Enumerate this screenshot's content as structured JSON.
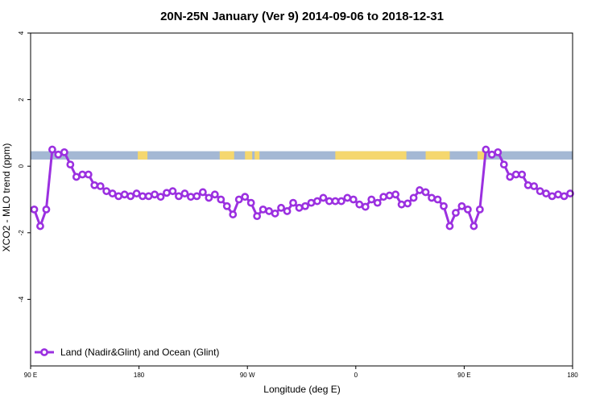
{
  "chart_data": {
    "type": "line",
    "title": "20N-25N January (Ver 9)   2014-09-06 to 2018-12-31",
    "xlabel": "Longitude (deg E)",
    "ylabel": "XCO2 - MLO trend (ppm)",
    "xlim": [
      90,
      540
    ],
    "ylim": [
      -6,
      4
    ],
    "x_ticks": [
      {
        "value": 90,
        "label": "90 E"
      },
      {
        "value": 180,
        "label": "180"
      },
      {
        "value": 270,
        "label": "90 W"
      },
      {
        "value": 360,
        "label": "0"
      },
      {
        "value": 450,
        "label": "90 E"
      },
      {
        "value": 540,
        "label": "180"
      }
    ],
    "y_ticks": [
      {
        "value": 4,
        "label": "4"
      },
      {
        "value": 2,
        "label": "2"
      },
      {
        "value": 0,
        "label": "0"
      },
      {
        "value": -2,
        "label": "-2"
      },
      {
        "value": -4,
        "label": "-4"
      }
    ],
    "grid": false,
    "legend_position": "bottom-left",
    "series": [
      {
        "name": "Land (Nadir&Glint) and Ocean (Glint)",
        "color": "#9b30e0",
        "x": [
          93,
          98,
          103,
          108,
          113,
          118,
          123,
          128,
          133,
          138,
          143,
          148,
          153,
          158,
          163,
          168,
          173,
          178,
          183,
          188,
          193,
          198,
          203,
          208,
          213,
          218,
          223,
          228,
          233,
          238,
          243,
          248,
          253,
          258,
          263,
          268,
          273,
          278,
          283,
          288,
          293,
          298,
          303,
          308,
          313,
          318,
          323,
          328,
          333,
          338,
          343,
          348,
          353,
          358,
          363,
          368,
          373,
          378,
          383,
          388,
          393,
          398,
          403,
          408,
          413,
          418,
          423,
          428,
          433,
          438,
          443,
          448,
          453,
          458,
          463,
          468,
          473,
          478,
          483,
          488,
          493,
          498,
          503,
          508,
          513,
          518,
          523,
          528,
          533,
          538
        ],
        "y": [
          -1.3,
          -1.8,
          -1.3,
          0.5,
          0.35,
          0.42,
          0.05,
          -0.32,
          -0.25,
          -0.25,
          -0.57,
          -0.6,
          -0.75,
          -0.82,
          -0.9,
          -0.85,
          -0.9,
          -0.82,
          -0.9,
          -0.9,
          -0.85,
          -0.92,
          -0.8,
          -0.75,
          -0.9,
          -0.82,
          -0.92,
          -0.9,
          -0.78,
          -0.95,
          -0.85,
          -1.0,
          -1.2,
          -1.45,
          -1.0,
          -0.92,
          -1.1,
          -1.5,
          -1.3,
          -1.35,
          -1.42,
          -1.25,
          -1.35,
          -1.1,
          -1.25,
          -1.2,
          -1.1,
          -1.05,
          -0.95,
          -1.05,
          -1.05,
          -1.05,
          -0.95,
          -1.0,
          -1.15,
          -1.22,
          -1.0,
          -1.1,
          -0.92,
          -0.88,
          -0.85,
          -1.15,
          -1.12,
          -0.95,
          -0.72,
          -0.78,
          -0.95,
          -1.0,
          -1.2,
          -1.8,
          -1.4,
          -1.2,
          -1.3,
          -1.8,
          -1.3,
          0.5,
          0.35,
          0.42,
          0.05,
          -0.32,
          -0.25,
          -0.25,
          -0.57,
          -0.6,
          -0.75,
          -0.82,
          -0.9,
          -0.85,
          -0.9,
          -0.82
        ]
      }
    ],
    "land_ocean_band": {
      "y_range": [
        0.2,
        0.45
      ],
      "ocean_color": "#a4b8d4",
      "land_color": "#f5d76e",
      "land_segments": [
        [
          179,
          187
        ],
        [
          247,
          259
        ],
        [
          268,
          274
        ],
        [
          276,
          280
        ],
        [
          343,
          402
        ],
        [
          418,
          438
        ],
        [
          461,
          468
        ]
      ]
    }
  }
}
